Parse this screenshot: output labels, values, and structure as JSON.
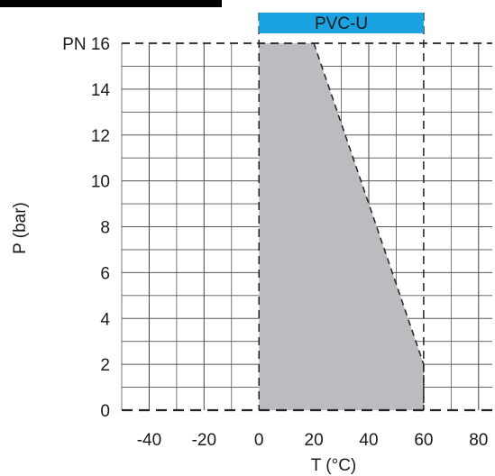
{
  "chart_data": {
    "type": "area",
    "xlabel": "T (°C)",
    "ylabel": "P (bar)",
    "xlim": [
      -50,
      85
    ],
    "ylim": [
      0,
      16
    ],
    "x_ticks": [
      -40,
      -20,
      0,
      20,
      40,
      60,
      80
    ],
    "x_tick_labels": [
      "-40",
      "-20",
      "0",
      "20",
      "40",
      "60",
      "80"
    ],
    "y_ticks": [
      0,
      2,
      4,
      6,
      8,
      10,
      12,
      14,
      16
    ],
    "y_tick_labels": [
      "0",
      "2",
      "4",
      "6",
      "8",
      "10",
      "12",
      "14",
      "PN 16"
    ],
    "grid": true,
    "series": [
      {
        "name": "PVC-U",
        "x": [
          0,
          20,
          60,
          60,
          0
        ],
        "y": [
          16,
          16,
          2,
          0,
          0
        ]
      }
    ],
    "banner": {
      "label": "PVC-U",
      "x_range": [
        0,
        60
      ]
    },
    "colors": {
      "area": "#bbbcbf",
      "banner": "#1aa3e0",
      "grid": "#555555",
      "title_bar": "#000000"
    }
  }
}
